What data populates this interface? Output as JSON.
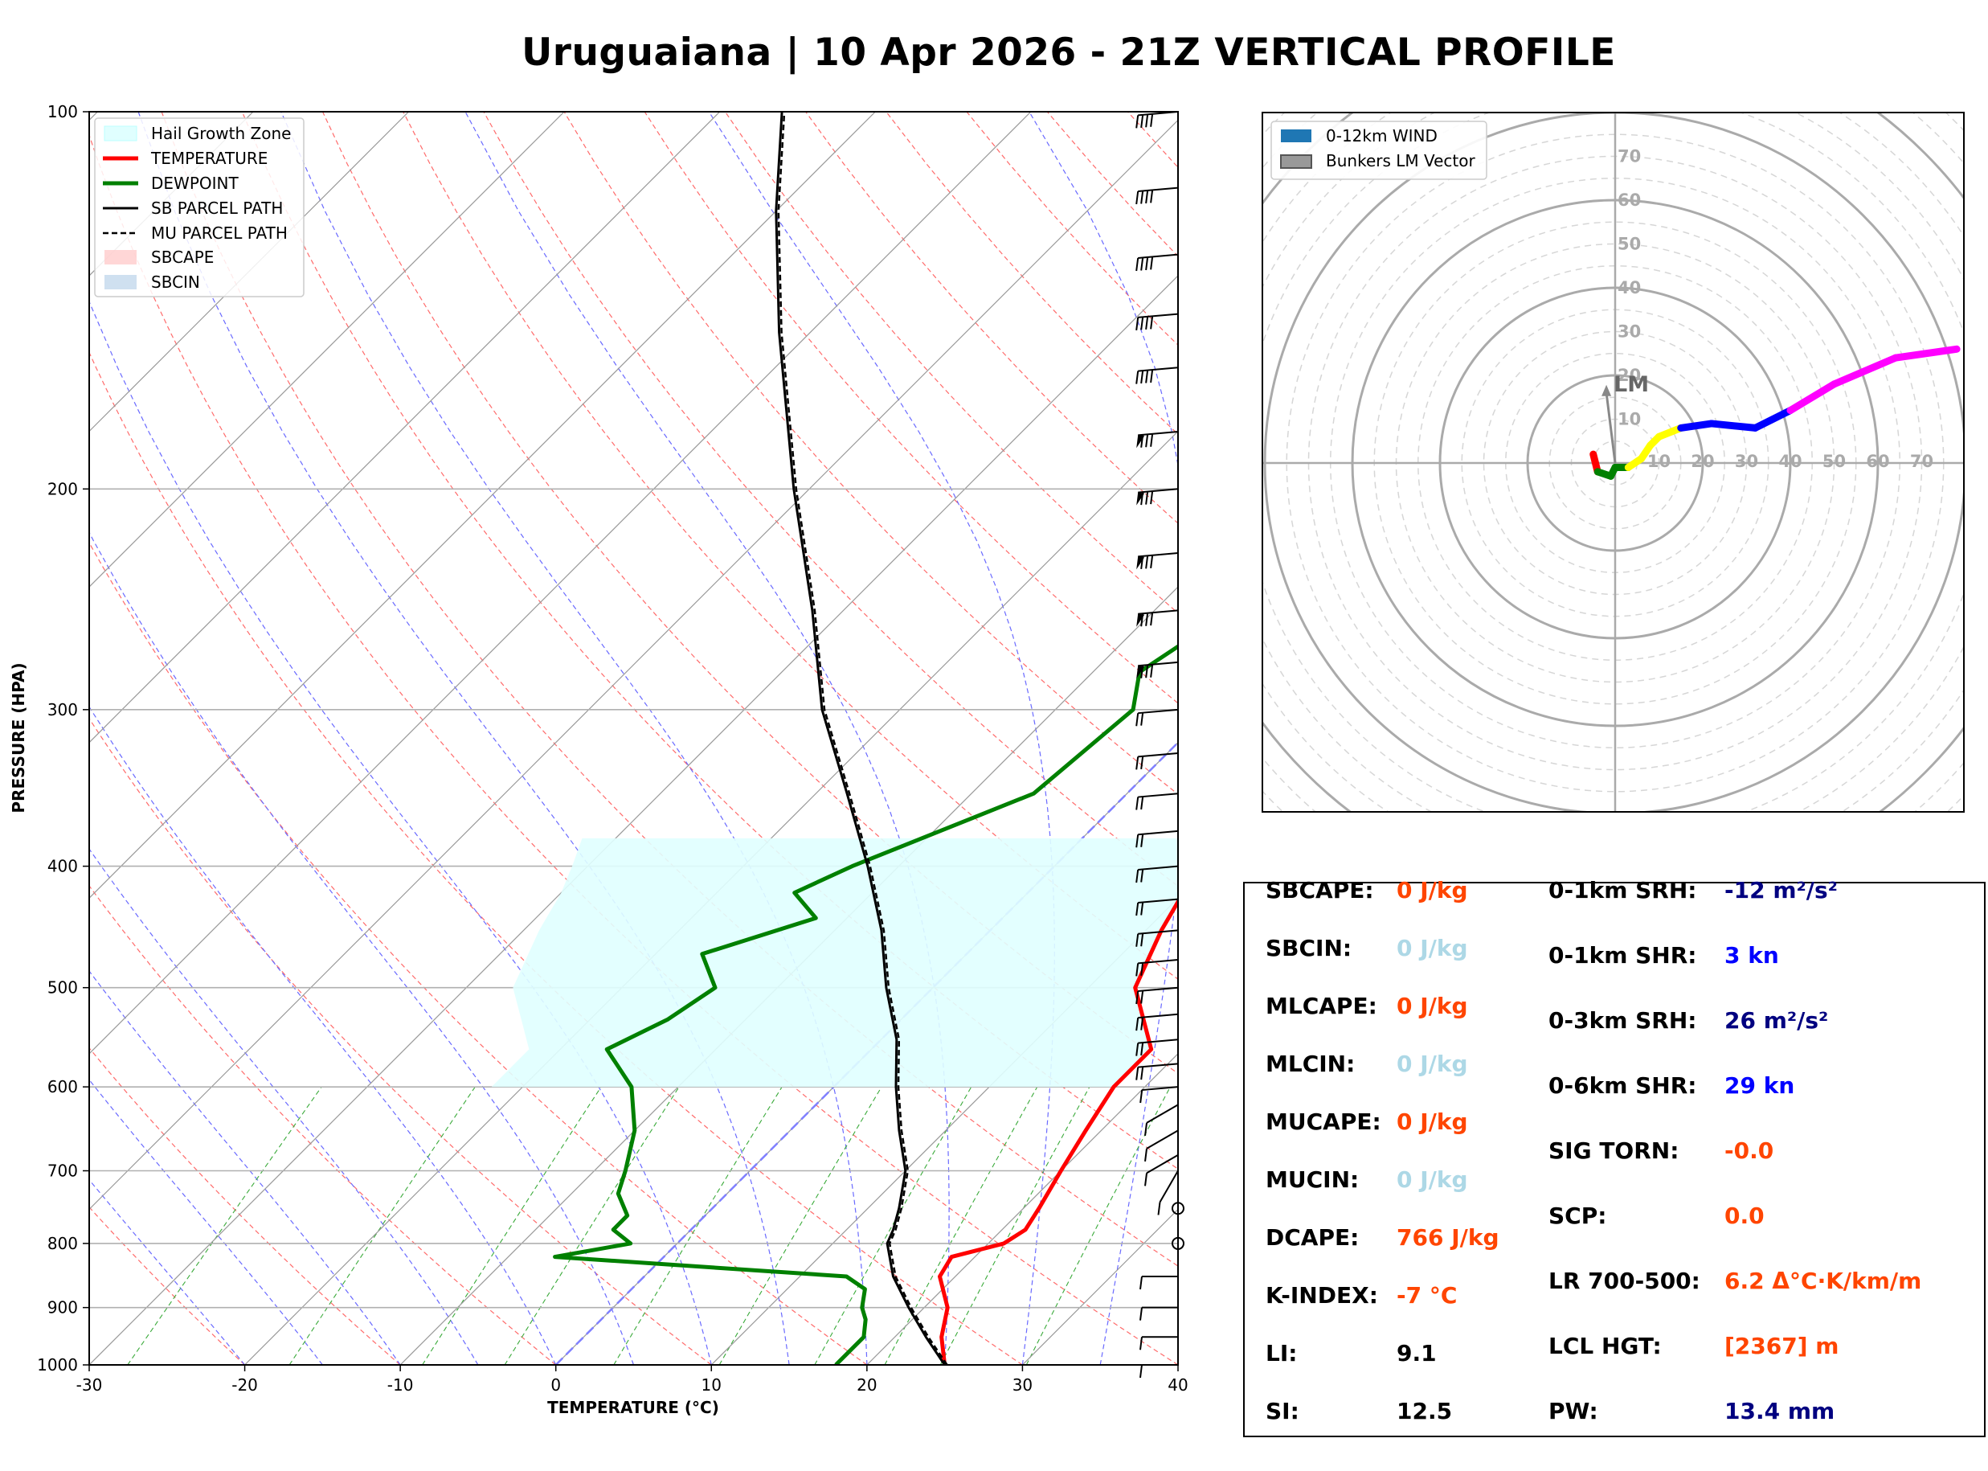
{
  "title": "Uruguaiana | 10 Apr 2026 - 21Z VERTICAL PROFILE",
  "skewt": {
    "xlabel": "TEMPERATURE (°C)",
    "ylabel": "PRESSURE (HPA)",
    "x_ticks": [
      "-30",
      "-20",
      "-10",
      "0",
      "10",
      "20",
      "30",
      "40"
    ],
    "y_ticks": [
      "100",
      "200",
      "300",
      "400",
      "500",
      "600",
      "700",
      "800",
      "900",
      "1000"
    ],
    "legend": [
      "Hail Growth Zone",
      "TEMPERATURE",
      "DEWPOINT",
      "SB PARCEL PATH",
      "MU PARCEL PATH",
      "SBCAPE",
      "SBCIN"
    ],
    "colors": {
      "temperature": "#ff0000",
      "dewpoint": "#008000",
      "parcel": "#000000",
      "hail": "#e0ffff"
    }
  },
  "chart_data": [
    {
      "type": "line",
      "title": "Skew-T log-P",
      "xlabel": "TEMPERATURE (°C)",
      "ylabel": "PRESSURE (HPA)",
      "xlim": [
        -30,
        40
      ],
      "ylim": [
        1000,
        100
      ],
      "series": [
        {
          "name": "TEMPERATURE",
          "p": [
            1000,
            950,
            900,
            850,
            820,
            800,
            780,
            750,
            700,
            650,
            600,
            560,
            500,
            450,
            420,
            400,
            350,
            300,
            250,
            200,
            170,
            150,
            130,
            110,
            100
          ],
          "t": [
            25,
            23,
            21.5,
            19,
            18.5,
            21,
            21.5,
            21,
            20,
            19,
            18,
            18,
            13,
            11,
            10,
            9,
            6,
            3,
            0,
            -5,
            -6,
            -5,
            -3,
            2,
            6
          ]
        },
        {
          "name": "DEWPOINT",
          "p": [
            1000,
            950,
            920,
            900,
            870,
            850,
            820,
            800,
            780,
            760,
            730,
            700,
            650,
            600,
            560,
            530,
            500,
            470,
            440,
            420,
            400,
            350,
            300,
            280,
            250,
            230,
            210,
            180,
            150,
            120,
            100
          ],
          "td": [
            18,
            18,
            17,
            16,
            15,
            13,
            -7,
            -3,
            -5,
            -5,
            -7,
            -8,
            -10,
            -13,
            -17,
            -15,
            -14,
            -17,
            -12,
            -15,
            -13,
            -6,
            -5,
            -7,
            -5,
            -5,
            -5,
            -4,
            -5,
            -7,
            -8
          ]
        },
        {
          "name": "SB PARCEL PATH",
          "p": [
            1000,
            950,
            900,
            850,
            800,
            780,
            750,
            700,
            650,
            600,
            550,
            500,
            450,
            400,
            350,
            300,
            250,
            200,
            150,
            120,
            100
          ],
          "t": [
            25,
            22,
            19,
            16,
            13.5,
            13,
            12,
            10,
            7,
            4,
            1,
            -3,
            -7,
            -12,
            -18,
            -25,
            -32,
            -41,
            -52,
            -60,
            -66
          ]
        }
      ],
      "hail_growth_zone": {
        "p_top": 380,
        "p_bottom": 600
      }
    },
    {
      "type": "scatter",
      "title": "Hodograph",
      "legend": [
        "0-12km WIND",
        "Bunkers LM Vector"
      ],
      "rings": [
        10,
        20,
        30,
        40,
        50,
        60,
        70
      ],
      "hodograph_uv": [
        [
          -5,
          2
        ],
        [
          -4,
          -2
        ],
        [
          -1,
          -3
        ],
        [
          0,
          -1
        ],
        [
          3,
          -1
        ],
        [
          6,
          1
        ],
        [
          8,
          4
        ],
        [
          10,
          6
        ],
        [
          15,
          8
        ],
        [
          22,
          9
        ],
        [
          32,
          8
        ],
        [
          40,
          12
        ],
        [
          50,
          18
        ],
        [
          64,
          24
        ],
        [
          78,
          26
        ]
      ],
      "lm_vector_uv": [
        -2,
        16
      ]
    }
  ],
  "hodograph": {
    "legend": [
      "0-12km WIND",
      "Bunkers LM Vector"
    ],
    "ring_labels": [
      "10",
      "20",
      "30",
      "40",
      "50",
      "60",
      "70"
    ],
    "lm_label": "LM"
  },
  "stats": {
    "left": [
      {
        "label": "SBCAPE:",
        "value": "0 J/kg",
        "color": "#ff4500"
      },
      {
        "label": "SBCIN:",
        "value": "0 J/kg",
        "color": "#add8e6"
      },
      {
        "label": "MLCAPE:",
        "value": "0 J/kg",
        "color": "#ff4500"
      },
      {
        "label": "MLCIN:",
        "value": "0 J/kg",
        "color": "#add8e6"
      },
      {
        "label": "MUCAPE:",
        "value": "0 J/kg",
        "color": "#ff4500"
      },
      {
        "label": "MUCIN:",
        "value": "0 J/kg",
        "color": "#add8e6"
      },
      {
        "label": "DCAPE:",
        "value": "766 J/kg",
        "color": "#ff4500"
      },
      {
        "label": "K-INDEX:",
        "value": "-7 °C",
        "color": "#ff4500"
      },
      {
        "label": "LI:",
        "value": "9.1",
        "color": "#000000"
      },
      {
        "label": "SI:",
        "value": "12.5",
        "color": "#000000"
      }
    ],
    "right": [
      {
        "label": "0-1km SRH:",
        "value": "-12 m²/s²",
        "color": "#000080"
      },
      {
        "label": "0-1km SHR:",
        "value": "3 kn",
        "color": "#0000ff"
      },
      {
        "label": "0-3km SRH:",
        "value": "26 m²/s²",
        "color": "#000080"
      },
      {
        "label": "0-6km SHR:",
        "value": "29 kn",
        "color": "#0000ff"
      },
      {
        "label": "SIG TORN:",
        "value": "-0.0",
        "color": "#ff4500"
      },
      {
        "label": "SCP:",
        "value": "0.0",
        "color": "#ff4500"
      },
      {
        "label": "LR 700-500:",
        "value": "6.2 Δ°C·K/km/m",
        "color": "#ff4500"
      },
      {
        "label": "LCL HGT:",
        "value": "[2367] m",
        "color": "#ff4500"
      },
      {
        "label": "PW:",
        "value": "13.4 mm",
        "color": "#000080"
      }
    ]
  }
}
